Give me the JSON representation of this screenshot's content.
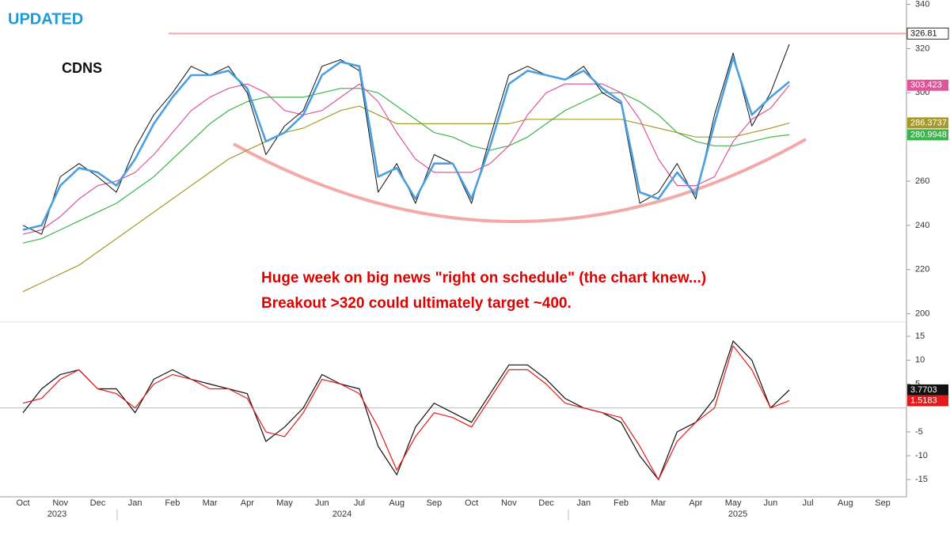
{
  "chart_data": [
    {
      "type": "line",
      "badge": "UPDATED",
      "title": "CDNS",
      "annotations": [
        "Huge week on big news \"right on schedule\" (the chart knew...)",
        "Breakout >320 could ultimately target ~400."
      ],
      "categories": [
        "Oct",
        null,
        "Nov",
        null,
        "Dec",
        null,
        "Jan",
        null,
        "Feb",
        null,
        "Mar",
        null,
        "Apr",
        null,
        "May",
        null,
        "Jun",
        null,
        "Jul",
        null,
        "Aug",
        null,
        "Sep",
        null,
        "Oct",
        null,
        "Nov",
        null,
        "Dec",
        null,
        "Jan",
        null,
        "Feb",
        null,
        "Mar",
        null,
        "Apr",
        null,
        "May",
        null,
        "Jun",
        null,
        "Jul",
        null,
        "Aug",
        null,
        "Sep",
        null
      ],
      "year_labels": [
        "2023",
        "2024",
        "2025"
      ],
      "ylim": [
        197,
        342
      ],
      "yticks": [
        200,
        220,
        240,
        260,
        280,
        300,
        320,
        340
      ],
      "hline": {
        "value": 326.81,
        "color": "#f4a9a9"
      },
      "series": [
        {
          "color": "#a89a2a",
          "line_width": 1.2,
          "label_box": true,
          "values": [
            210,
            214,
            218,
            222,
            228,
            234,
            240,
            246,
            252,
            258,
            264,
            270,
            274,
            278,
            282,
            284,
            288,
            292,
            294,
            290,
            286,
            286,
            286,
            286,
            286,
            286,
            286,
            288,
            288,
            288,
            288,
            288,
            288,
            286,
            284,
            282,
            280,
            280,
            280,
            282,
            284,
            286.3737,
            null,
            null,
            null,
            null,
            null,
            null
          ]
        },
        {
          "color": "#3cb44b",
          "line_width": 1.2,
          "label_box": true,
          "values": [
            232,
            234,
            238,
            242,
            246,
            250,
            256,
            262,
            270,
            278,
            286,
            292,
            296,
            298,
            298,
            298,
            300,
            302,
            302,
            300,
            294,
            288,
            282,
            280,
            276,
            274,
            276,
            280,
            286,
            292,
            296,
            300,
            300,
            296,
            290,
            282,
            278,
            276,
            276,
            278,
            280,
            280.9948,
            null,
            null,
            null,
            null,
            null,
            null
          ]
        },
        {
          "color": "#e0559a",
          "line_width": 1.2,
          "label_box": true,
          "values": [
            236,
            238,
            244,
            252,
            258,
            260,
            264,
            272,
            282,
            292,
            298,
            302,
            304,
            300,
            292,
            290,
            292,
            298,
            304,
            296,
            282,
            270,
            264,
            264,
            264,
            268,
            276,
            290,
            300,
            304,
            304,
            304,
            300,
            288,
            270,
            258,
            258,
            262,
            278,
            288,
            293,
            303.423,
            null,
            null,
            null,
            null,
            null,
            null
          ]
        },
        {
          "color": "#111111",
          "line_width": 1,
          "values": [
            240,
            236,
            262,
            268,
            262,
            255,
            275,
            290,
            300,
            312,
            308,
            312,
            300,
            272,
            285,
            292,
            312,
            315,
            310,
            255,
            268,
            250,
            272,
            268,
            250,
            280,
            308,
            312,
            308,
            306,
            312,
            300,
            295,
            250,
            255,
            268,
            252,
            290,
            318,
            285,
            300,
            322,
            null,
            null,
            null,
            null,
            null,
            null
          ]
        },
        {
          "color": "#4a9fe0",
          "line_width": 2.6,
          "values": [
            238,
            240,
            258,
            266,
            264,
            258,
            270,
            286,
            298,
            308,
            308,
            310,
            302,
            278,
            282,
            290,
            308,
            314,
            312,
            262,
            266,
            252,
            268,
            268,
            252,
            276,
            304,
            310,
            308,
            306,
            310,
            302,
            296,
            255,
            252,
            264,
            254,
            286,
            316,
            290,
            298,
            305,
            null,
            null,
            null,
            null,
            null,
            null
          ]
        }
      ]
    },
    {
      "type": "line",
      "ylim": [
        -18.6,
        17.5
      ],
      "yticks": [
        -15,
        -10,
        -5,
        5,
        10,
        15
      ],
      "series": [
        {
          "color": "#111111",
          "line_width": 1.2,
          "label_box": true,
          "values": [
            -1,
            4,
            7,
            8,
            4,
            4,
            -1,
            6,
            8,
            6,
            5,
            4,
            3,
            -7,
            -4,
            0,
            7,
            5,
            4,
            -8,
            -14,
            -4,
            1,
            -1,
            -3,
            3,
            9,
            9,
            6,
            2,
            0,
            -1,
            -3,
            -10,
            -15,
            -5,
            -3,
            2,
            14,
            10,
            0,
            3.7703,
            null,
            null,
            null,
            null,
            null,
            null
          ]
        },
        {
          "color": "#e31a1c",
          "line_width": 1.2,
          "label_box": true,
          "values": [
            1,
            2,
            6,
            8,
            4,
            3,
            0,
            5,
            7,
            6,
            4,
            4,
            2,
            -5,
            -6,
            -1,
            6,
            5,
            3,
            -4,
            -13,
            -6,
            -1,
            -2,
            -4,
            2,
            8,
            8,
            5,
            1,
            0,
            -1,
            -2,
            -8,
            -15,
            -7,
            -3,
            0,
            13,
            8,
            0,
            1.5183,
            null,
            null,
            null,
            null,
            null,
            null
          ]
        }
      ]
    }
  ]
}
